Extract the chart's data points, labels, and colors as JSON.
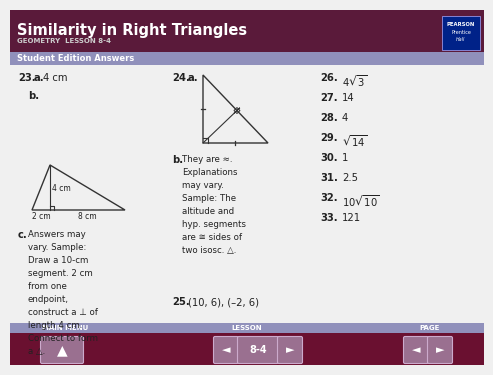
{
  "title": "Similarity in Right Triangles",
  "subtitle": "GEOMETRY  LESSON 8-4",
  "section": "Student Edition Answers",
  "header_bg": "#5a1a3a",
  "section_bg": "#9090bb",
  "footer_bg": "#6a1030",
  "footer_label_bg": "#9090bb",
  "body_bg": "#f0f0f0",
  "pearson_bg": "#002288",
  "text_23a": "4 cm",
  "text_25": "(10, 6), (–2, 6)",
  "text_23c_lines": [
    "Answers may",
    "vary. Sample:",
    "Draw a 10-cm",
    "segment. 2 cm",
    "from one",
    "endpoint,",
    "construct a ⊥ of",
    "length 4 cm.",
    "Connect to form",
    "a △."
  ],
  "text_24b_lines": [
    "They are ≈.",
    "Explanations",
    "may vary.",
    "Sample: The",
    "altitude and",
    "hyp. segments",
    "are ≅ sides of",
    "two isosc. △."
  ],
  "right_answers": [
    {
      "num": "26.",
      "ans": "4\\sqrt{3}"
    },
    {
      "num": "27.",
      "ans": "14"
    },
    {
      "num": "28.",
      "ans": "4"
    },
    {
      "num": "29.",
      "ans": "\\sqrt{14}"
    },
    {
      "num": "30.",
      "ans": "1"
    },
    {
      "num": "31.",
      "ans": "2.5"
    },
    {
      "num": "32.",
      "ans": "10\\sqrt{10}"
    },
    {
      "num": "33.",
      "ans": "121"
    }
  ],
  "footer_label_main": "MAIN MENU",
  "footer_label_lesson": "LESSON",
  "footer_label_page": "PAGE",
  "footer_page": "8-4"
}
